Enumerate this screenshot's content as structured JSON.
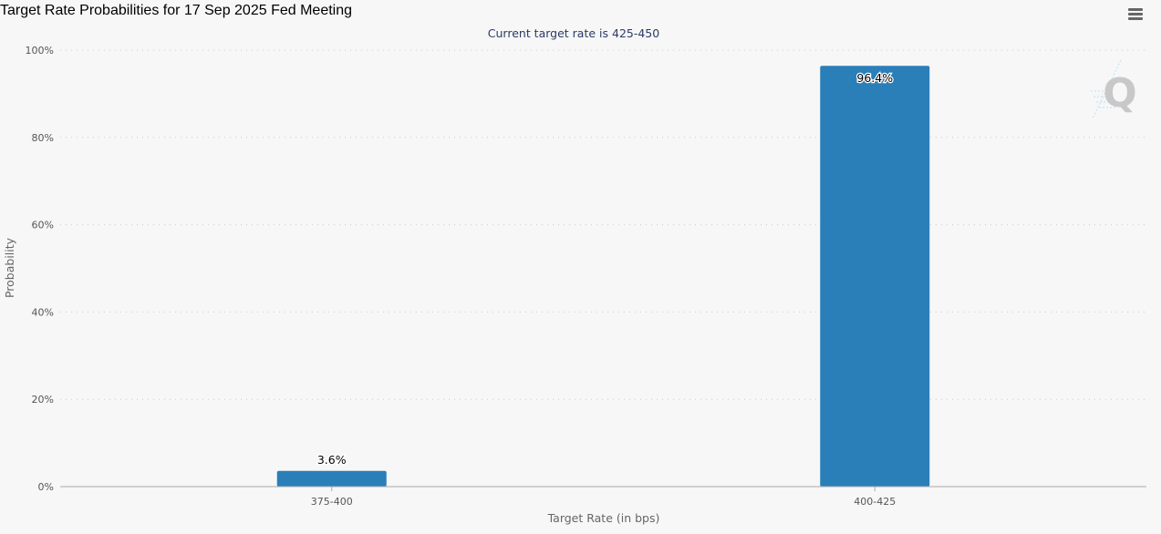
{
  "chart_data": {
    "type": "bar",
    "title": "Target Rate Probabilities for 17 Sep 2025 Fed Meeting",
    "subtitle": "Current target rate is 425-450",
    "xlabel": "Target Rate (in bps)",
    "ylabel": "Probability",
    "categories": [
      "375-400",
      "400-425"
    ],
    "values": [
      3.6,
      96.4
    ],
    "data_labels": [
      "3.6%",
      "96.4%"
    ],
    "ylim": [
      0,
      100
    ],
    "yticks": [
      0,
      20,
      40,
      60,
      80,
      100
    ],
    "ytick_labels": [
      "0%",
      "20%",
      "40%",
      "60%",
      "80%",
      "100%"
    ],
    "grid": true,
    "legend": false,
    "colors": {
      "bar": "#2a7fb8",
      "grid": "#cccccc",
      "axis": "#aaaaaa",
      "background": "#f7f7f7"
    }
  },
  "ui": {
    "menu_icon": "hamburger-menu-icon",
    "watermark_icon": "q-logo-icon"
  }
}
